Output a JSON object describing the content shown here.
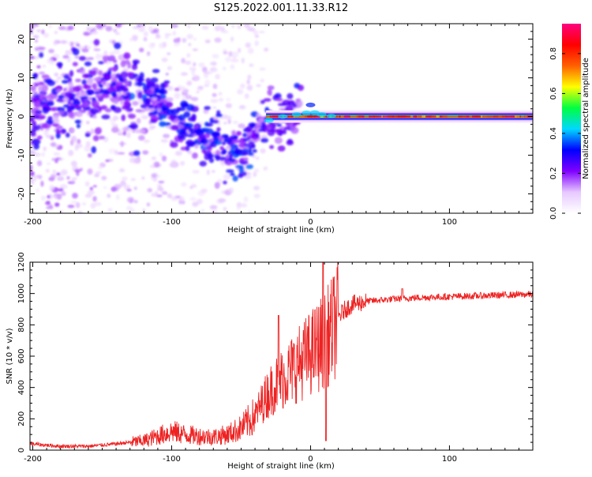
{
  "title": "S125.2022.001.11.33.R12",
  "chart_data": [
    {
      "type": "heatmap",
      "xlabel": "Height of straight line (km)",
      "ylabel": "Frequency (Hz)",
      "xlim": [
        -202,
        160
      ],
      "ylim": [
        -25,
        24
      ],
      "xticks": [
        -200,
        -100,
        0,
        100
      ],
      "yticks": [
        -20,
        -10,
        0,
        10,
        20
      ],
      "colorbar": {
        "label": "Normalized spectral amplitude",
        "range": [
          0,
          0.95
        ],
        "ticks": [
          "0.0",
          "0.2",
          "0.4",
          "0.6",
          "0.8"
        ],
        "tick_values": [
          0,
          0.2,
          0.4,
          0.6,
          0.8
        ],
        "colors": [
          "#ffffff",
          "#e6c8ff",
          "#8000ff",
          "#0000ff",
          "#00d8ff",
          "#00ff40",
          "#ffff00",
          "#ff6000",
          "#ff0000",
          "#ff0080"
        ]
      },
      "ridge": {
        "description_points_x": [
          -200,
          -180,
          -160,
          -140,
          -120,
          -100,
          -80,
          -60,
          -50,
          -40,
          -30,
          -20,
          -10,
          -2,
          0,
          3,
          10,
          20,
          60,
          100,
          160
        ],
        "description_points_y": [
          3,
          4,
          5,
          7,
          6,
          0,
          -4,
          -9,
          -10,
          -4,
          -1,
          0,
          0.5,
          1,
          3,
          1,
          0.3,
          0,
          0,
          0,
          0
        ]
      }
    },
    {
      "type": "line",
      "xlabel": "Height of straight line (km)",
      "ylabel": "SNR (10 * v/v)",
      "xlim": [
        -202,
        160
      ],
      "ylim": [
        0,
        1200
      ],
      "xticks": [
        -200,
        -100,
        0,
        100
      ],
      "yticks": [
        0,
        200,
        400,
        600,
        800,
        1000,
        1200
      ],
      "color": "#ee2222",
      "trend_x": [
        -202,
        -180,
        -160,
        -140,
        -120,
        -110,
        -100,
        -90,
        -80,
        -70,
        -60,
        -50,
        -40,
        -35,
        -30,
        -25,
        -20,
        -15,
        -10,
        -5,
        0,
        5,
        10,
        15,
        20,
        25,
        30,
        40,
        60,
        80,
        100,
        120,
        140,
        160
      ],
      "trend_y": [
        40,
        25,
        25,
        40,
        60,
        90,
        120,
        100,
        90,
        85,
        100,
        140,
        220,
        300,
        370,
        420,
        460,
        500,
        540,
        580,
        620,
        660,
        700,
        760,
        850,
        900,
        930,
        950,
        965,
        975,
        980,
        985,
        990,
        995
      ],
      "spikes": [
        {
          "x": 9,
          "y": 1200
        },
        {
          "x": 11,
          "y": 60
        },
        {
          "x": -23,
          "y": 860
        },
        {
          "x": 66,
          "y": 1030
        }
      ]
    }
  ]
}
